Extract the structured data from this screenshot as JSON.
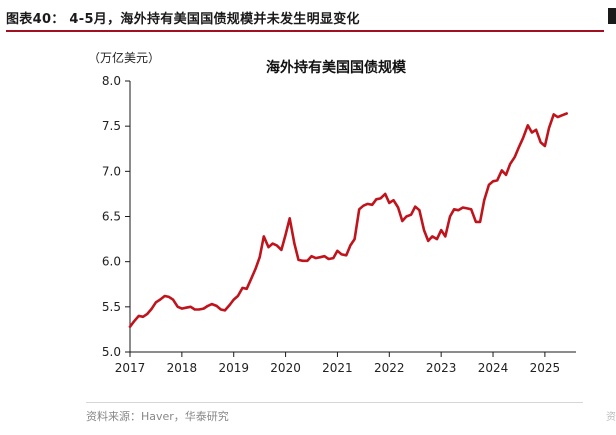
{
  "figure": {
    "title": "图表40： 4-5月，海外持有美国国债规模并未发生明显变化",
    "source": "资料来源：Haver，华泰研究"
  },
  "chart_data": {
    "type": "line",
    "title": "海外持有美国国债规模",
    "unit_label": "（万亿美元）",
    "xlabel": "",
    "ylabel": "",
    "xlim": [
      2017.0,
      2025.6
    ],
    "ylim": [
      5.0,
      8.0
    ],
    "x_ticks": [
      "2017",
      "2018",
      "2019",
      "2020",
      "2021",
      "2022",
      "2023",
      "2024",
      "2025"
    ],
    "y_ticks": [
      "5.0",
      "5.5",
      "6.0",
      "6.5",
      "7.0",
      "7.5",
      "8.0"
    ],
    "grid": false,
    "legend": "none",
    "colors": {
      "line": "#c0141c",
      "axis": "#1a1a1a"
    },
    "series": [
      {
        "x": [
          2017.0,
          2017.08,
          2017.17,
          2017.25,
          2017.33,
          2017.42,
          2017.5,
          2017.58,
          2017.67,
          2017.75,
          2017.83,
          2017.92,
          2018.0,
          2018.08,
          2018.17,
          2018.25,
          2018.33,
          2018.42,
          2018.5,
          2018.58,
          2018.67,
          2018.75,
          2018.83,
          2018.92,
          2019.0,
          2019.08,
          2019.17,
          2019.25,
          2019.33,
          2019.42,
          2019.5,
          2019.58,
          2019.67,
          2019.75,
          2019.83,
          2019.92,
          2020.0,
          2020.08,
          2020.17,
          2020.25,
          2020.33,
          2020.42,
          2020.5,
          2020.58,
          2020.67,
          2020.75,
          2020.83,
          2020.92,
          2021.0,
          2021.08,
          2021.17,
          2021.25,
          2021.33,
          2021.42,
          2021.5,
          2021.58,
          2021.67,
          2021.75,
          2021.83,
          2021.92,
          2022.0,
          2022.08,
          2022.17,
          2022.25,
          2022.33,
          2022.42,
          2022.5,
          2022.58,
          2022.67,
          2022.75,
          2022.83,
          2022.92,
          2023.0,
          2023.08,
          2023.17,
          2023.25,
          2023.33,
          2023.42,
          2023.5,
          2023.58,
          2023.67,
          2023.75,
          2023.83,
          2023.92,
          2024.0,
          2024.08,
          2024.17,
          2024.25,
          2024.33,
          2024.42,
          2024.5,
          2024.58,
          2024.67,
          2024.75,
          2024.83,
          2024.92,
          2025.0,
          2025.08,
          2025.17,
          2025.25,
          2025.33,
          2025.42
        ],
        "y": [
          5.28,
          5.34,
          5.4,
          5.39,
          5.42,
          5.48,
          5.55,
          5.58,
          5.62,
          5.61,
          5.58,
          5.5,
          5.48,
          5.49,
          5.5,
          5.47,
          5.47,
          5.48,
          5.51,
          5.53,
          5.51,
          5.47,
          5.46,
          5.52,
          5.58,
          5.62,
          5.71,
          5.7,
          5.8,
          5.92,
          6.05,
          6.28,
          6.16,
          6.2,
          6.18,
          6.13,
          6.3,
          6.48,
          6.2,
          6.02,
          6.01,
          6.01,
          6.06,
          6.04,
          6.05,
          6.06,
          6.03,
          6.04,
          6.12,
          6.08,
          6.07,
          6.18,
          6.25,
          6.58,
          6.62,
          6.64,
          6.63,
          6.69,
          6.7,
          6.75,
          6.65,
          6.68,
          6.6,
          6.45,
          6.5,
          6.52,
          6.61,
          6.57,
          6.35,
          6.23,
          6.28,
          6.25,
          6.35,
          6.28,
          6.5,
          6.58,
          6.57,
          6.6,
          6.59,
          6.58,
          6.44,
          6.44,
          6.68,
          6.85,
          6.89,
          6.9,
          7.01,
          6.96,
          7.08,
          7.16,
          7.27,
          7.37,
          7.51,
          7.43,
          7.46,
          7.32,
          7.28,
          7.48,
          7.63,
          7.6,
          7.62,
          7.64
        ]
      }
    ]
  }
}
